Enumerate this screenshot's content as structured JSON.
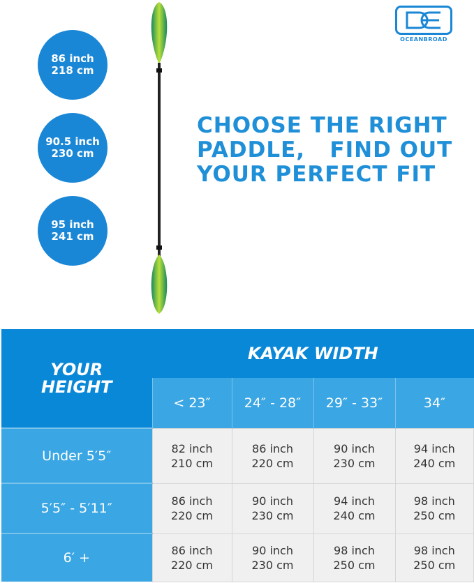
{
  "logo": {
    "text": "OCEANBROAD",
    "colors": {
      "brand": "#1a87d6"
    }
  },
  "lengths": [
    {
      "inch": "86 inch",
      "cm": "218 cm"
    },
    {
      "inch": "90.5 inch",
      "cm": "230 cm"
    },
    {
      "inch": "95 inch",
      "cm": "241 cm"
    }
  ],
  "headline": [
    "CHOOSE THE RIGHT",
    "PADDLE,   FIND OUT",
    "YOUR PERFECT FIT"
  ],
  "table": {
    "height_header": [
      "YOUR",
      "HEIGHT"
    ],
    "width_header": "KAYAK WIDTH",
    "width_columns": [
      "< 23″",
      "24″ - 28″",
      "29″ - 33″",
      "34″"
    ],
    "rows": [
      {
        "height": "Under 5′5″",
        "cells": [
          [
            "82 inch",
            "210 cm"
          ],
          [
            "86 inch",
            "220 cm"
          ],
          [
            "90 inch",
            "230 cm"
          ],
          [
            "94 inch",
            "240 cm"
          ]
        ]
      },
      {
        "height": "5′5″ - 5′11″",
        "cells": [
          [
            "86 inch",
            "220 cm"
          ],
          [
            "90 inch",
            "230 cm"
          ],
          [
            "94 inch",
            "240 cm"
          ],
          [
            "98 inch",
            "250 cm"
          ]
        ]
      },
      {
        "height": "6′ +",
        "cells": [
          [
            "86 inch",
            "220 cm"
          ],
          [
            "90 inch",
            "230 cm"
          ],
          [
            "98 inch",
            "250 cm"
          ],
          [
            "98 inch",
            "250 cm"
          ]
        ]
      }
    ]
  }
}
